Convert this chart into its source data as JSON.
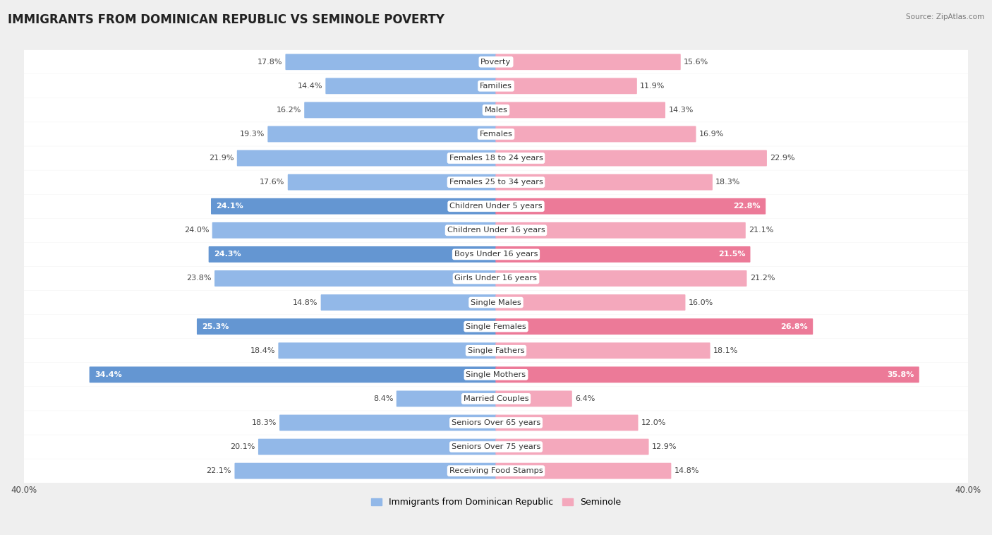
{
  "title": "IMMIGRANTS FROM DOMINICAN REPUBLIC VS SEMINOLE POVERTY",
  "source": "Source: ZipAtlas.com",
  "categories": [
    "Poverty",
    "Families",
    "Males",
    "Females",
    "Females 18 to 24 years",
    "Females 25 to 34 years",
    "Children Under 5 years",
    "Children Under 16 years",
    "Boys Under 16 years",
    "Girls Under 16 years",
    "Single Males",
    "Single Females",
    "Single Fathers",
    "Single Mothers",
    "Married Couples",
    "Seniors Over 65 years",
    "Seniors Over 75 years",
    "Receiving Food Stamps"
  ],
  "left_values": [
    17.8,
    14.4,
    16.2,
    19.3,
    21.9,
    17.6,
    24.1,
    24.0,
    24.3,
    23.8,
    14.8,
    25.3,
    18.4,
    34.4,
    8.4,
    18.3,
    20.1,
    22.1
  ],
  "right_values": [
    15.6,
    11.9,
    14.3,
    16.9,
    22.9,
    18.3,
    22.8,
    21.1,
    21.5,
    21.2,
    16.0,
    26.8,
    18.1,
    35.8,
    6.4,
    12.0,
    12.9,
    14.8
  ],
  "left_color": "#92B8E8",
  "right_color": "#F4A8BC",
  "highlight_left_color": "#6496D2",
  "highlight_right_color": "#EC7A98",
  "max_val": 40.0,
  "bg_color": "#efefef",
  "title_fontsize": 12,
  "legend_left": "Immigrants from Dominican Republic",
  "legend_right": "Seminole",
  "highlight_rows": [
    6,
    8,
    11,
    13
  ],
  "value_label_threshold": 5.0
}
